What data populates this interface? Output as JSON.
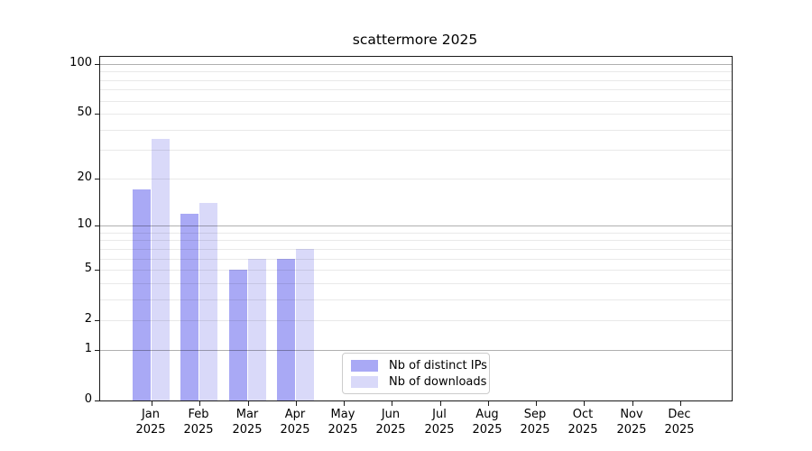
{
  "title": "scattermore 2025",
  "colors": {
    "series_distinct_ips": "#a9a9f5",
    "series_downloads": "#d9d9f9",
    "major_gridline": "#b0b0b0",
    "minor_gridline": "#e9e9e9",
    "axis": "#1a1a1a",
    "background": "#ffffff"
  },
  "chart_data": {
    "type": "bar",
    "title": "scattermore 2025",
    "y_scale": "log1p",
    "ylim": [
      0,
      110
    ],
    "grid": true,
    "legend_position": "lower center inside plot",
    "y_ticks": [
      0,
      1,
      2,
      5,
      10,
      20,
      50,
      100
    ],
    "y_major_gridlines": [
      1,
      10,
      100
    ],
    "y_minor_gridlines": [
      2,
      3,
      4,
      5,
      6,
      7,
      8,
      9,
      20,
      30,
      40,
      50,
      60,
      70,
      80,
      90
    ],
    "categories": [
      "Jan",
      "Feb",
      "Mar",
      "Apr",
      "May",
      "Jun",
      "Jul",
      "Aug",
      "Sep",
      "Oct",
      "Nov",
      "Dec"
    ],
    "category_year": "2025",
    "series": [
      {
        "name": "Nb of distinct IPs",
        "color": "#a9a9f5",
        "values": [
          17,
          12,
          5,
          6,
          null,
          null,
          null,
          null,
          null,
          null,
          null,
          null
        ]
      },
      {
        "name": "Nb of downloads",
        "color": "#d9d9f9",
        "values": [
          35,
          14,
          6,
          7,
          null,
          null,
          null,
          null,
          null,
          null,
          null,
          null
        ]
      }
    ]
  }
}
